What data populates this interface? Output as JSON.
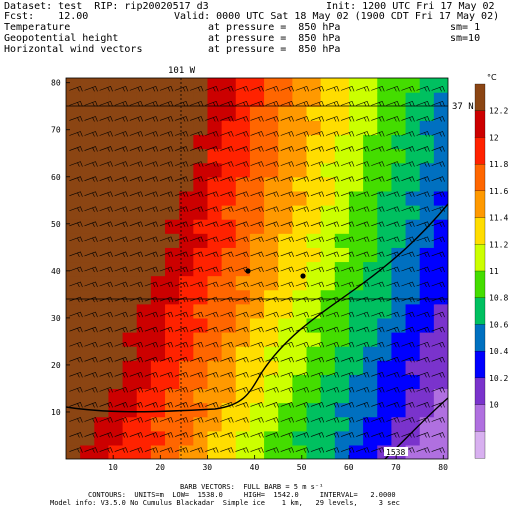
{
  "header": {
    "dataset_line": "Dataset: test  RIP: rip20020517 d3",
    "init_line": "Init: 1200 UTC Fri 17 May 02",
    "fcst_line": "Fcst:    12.00",
    "valid_line": "Valid: 0000 UTC Sat 18 May 02 (1900 CDT Fri 17 May 02)",
    "fields": [
      {
        "name": "Temperature",
        "level": "at pressure =  850 hPa",
        "smoothing": "sm= 1"
      },
      {
        "name": "Geopotential height",
        "level": "at pressure =  850 hPa",
        "smoothing": "sm=10"
      },
      {
        "name": "Horizontal wind vectors",
        "level": "at pressure =  850 hPa",
        "smoothing": ""
      }
    ]
  },
  "map": {
    "meridian_label": "101 W",
    "parallel_label": "37 N",
    "contour_label": "1538",
    "x_ticks": [
      "10",
      "20",
      "30",
      "40",
      "50",
      "60",
      "70",
      "80"
    ],
    "y_ticks": [
      "10",
      "20",
      "30",
      "40",
      "50",
      "60",
      "70",
      "80"
    ]
  },
  "colorbar": {
    "unit": "°C",
    "labels": [
      "12.2",
      "12",
      "11.8",
      "11.6",
      "11.4",
      "11.2",
      "11",
      "10.8",
      "10.6",
      "10.4",
      "10.2",
      "10"
    ],
    "colors": [
      "#8b4513",
      "#cc0000",
      "#ff2200",
      "#ff6600",
      "#ff9900",
      "#ffdd00",
      "#ccff00",
      "#44dd00",
      "#00c060",
      "#0070c0",
      "#0000ff",
      "#7a33cc",
      "#b070e0",
      "#d8b0f0"
    ]
  },
  "footer": {
    "barbs_line": "BARB VECTORS:  FULL BARB = 5 m s⁻¹",
    "contours_line": "CONTOURS:  UNITS=m  LOW=  1538.0     HIGH=  1542.0     INTERVAL=   2.0000",
    "model_line": "Model info: V3.5.0 No Cumulus Blackadar  Simple ice    1 km,   29 levels,     3 sec"
  }
}
